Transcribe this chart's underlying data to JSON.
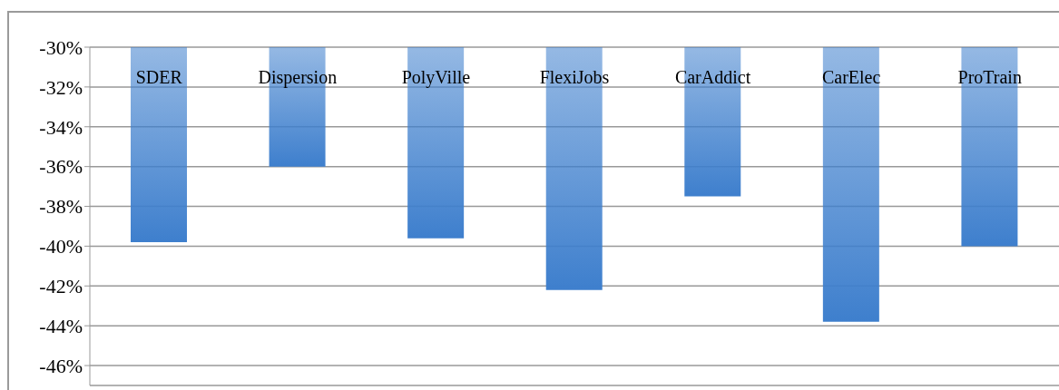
{
  "chart_data": {
    "type": "bar",
    "categories": [
      "SDER",
      "Dispersion",
      "PolyVille",
      "FlexiJobs",
      "CarAddict",
      "CarElec",
      "ProTrain"
    ],
    "values": [
      -39.8,
      -36.0,
      -39.6,
      -42.2,
      -37.5,
      -43.8,
      -40.0
    ],
    "color": "#3e7fcd",
    "ylim": [
      -47,
      -30
    ],
    "yticks": [
      {
        "value": -30,
        "label": "-30%"
      },
      {
        "value": -32,
        "label": "-32%"
      },
      {
        "value": -34,
        "label": "-34%"
      },
      {
        "value": -36,
        "label": "-36%"
      },
      {
        "value": -38,
        "label": "-38%"
      },
      {
        "value": -40,
        "label": "-40%"
      },
      {
        "value": -42,
        "label": "-42%"
      },
      {
        "value": -44,
        "label": "-44%"
      },
      {
        "value": -46,
        "label": "-46%"
      }
    ],
    "grid": "y"
  }
}
